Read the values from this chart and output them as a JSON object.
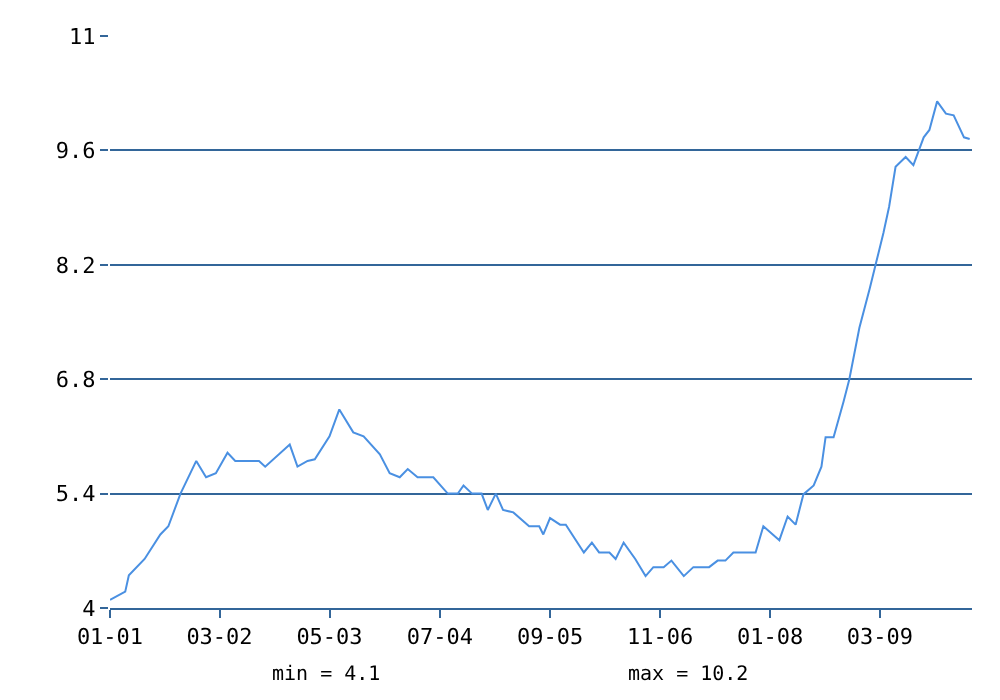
{
  "chart_data": {
    "type": "line",
    "x": [
      "2001-01-01",
      "2001-03-01",
      "2001-03-15",
      "2001-05-15",
      "2001-07-15",
      "2001-08-15",
      "2001-10-01",
      "2001-12-01",
      "2002-01-08",
      "2002-02-15",
      "2002-04-01",
      "2002-05-01",
      "2002-08-01",
      "2002-08-25",
      "2002-11-28",
      "2002-12-28",
      "2003-02-05",
      "2003-03-05",
      "2003-05-01",
      "2003-06-08",
      "2003-08-01",
      "2003-09-10",
      "2003-11-12",
      "2003-12-20",
      "2004-01-28",
      "2004-02-28",
      "2004-04-06",
      "2004-06-06",
      "2004-08-01",
      "2004-09-09",
      "2004-10-01",
      "2004-11-03",
      "2004-12-10",
      "2005-01-03",
      "2005-02-03",
      "2005-03-03",
      "2005-04-12",
      "2005-06-12",
      "2005-07-21",
      "2005-08-06",
      "2005-09-01",
      "2005-10-10",
      "2005-11-01",
      "2006-01-10",
      "2006-02-10",
      "2006-03-10",
      "2006-04-19",
      "2006-05-13",
      "2006-06-13",
      "2006-07-28",
      "2006-09-06",
      "2006-10-06",
      "2006-11-15",
      "2006-12-15",
      "2007-02-01",
      "2007-03-10",
      "2007-05-10",
      "2007-06-12",
      "2007-07-12",
      "2007-08-12",
      "2007-11-06",
      "2007-12-06",
      "2008-02-06",
      "2008-03-09",
      "2008-04-09",
      "2008-05-09",
      "2008-06-18",
      "2008-07-18",
      "2008-08-03",
      "2008-09-03",
      "2008-10-12",
      "2008-11-03",
      "2008-12-12",
      "2009-01-21",
      "2009-02-15",
      "2009-03-15",
      "2009-04-06",
      "2009-05-01",
      "2009-06-09",
      "2009-07-09",
      "2009-08-18",
      "2009-09-09",
      "2009-10-09",
      "2009-11-12",
      "2009-12-12",
      "2010-01-21",
      "2010-02-12"
    ],
    "series": [
      {
        "color": "#4a90e2",
        "values": [
          4.1,
          4.2,
          4.4,
          4.6,
          4.9,
          5.0,
          5.4,
          5.8,
          5.6,
          5.65,
          5.9,
          5.8,
          5.8,
          5.73,
          6.0,
          5.73,
          5.8,
          5.82,
          6.1,
          6.43,
          6.15,
          6.1,
          5.88,
          5.65,
          5.6,
          5.7,
          5.6,
          5.6,
          5.4,
          5.4,
          5.5,
          5.4,
          5.4,
          5.2,
          5.4,
          5.2,
          5.17,
          5.0,
          5.0,
          4.9,
          5.1,
          5.02,
          5.02,
          4.68,
          4.8,
          4.68,
          4.68,
          4.6,
          4.8,
          4.6,
          4.39,
          4.5,
          4.5,
          4.58,
          4.39,
          4.5,
          4.5,
          4.58,
          4.58,
          4.68,
          4.68,
          5.0,
          4.83,
          5.12,
          5.02,
          5.39,
          5.5,
          5.73,
          6.09,
          6.09,
          6.53,
          6.8,
          7.43,
          7.91,
          8.23,
          8.59,
          8.91,
          9.4,
          9.52,
          9.42,
          9.76,
          9.85,
          10.2,
          10.05,
          10.03,
          9.76,
          9.74
        ]
      }
    ],
    "xlim": [
      "2001-01-01",
      "2010-02-21"
    ],
    "xticks": [
      {
        "value": "2001-01-01",
        "label": "01-01"
      },
      {
        "value": "2002-03-01",
        "label": "03-02"
      },
      {
        "value": "2003-05-01",
        "label": "05-03"
      },
      {
        "value": "2004-07-01",
        "label": "07-04"
      },
      {
        "value": "2005-09-01",
        "label": "09-05"
      },
      {
        "value": "2006-11-01",
        "label": "11-06"
      },
      {
        "value": "2008-01-01",
        "label": "01-08"
      },
      {
        "value": "2009-03-01",
        "label": "03-09"
      }
    ],
    "ylim": [
      4,
      11
    ],
    "yticks": [
      4,
      5.4,
      6.8,
      8.2,
      9.6,
      11
    ],
    "grid": "y",
    "marker": "none",
    "line_style": "solid",
    "annotations": [
      "min = 4.1",
      "max = 10.2"
    ]
  }
}
